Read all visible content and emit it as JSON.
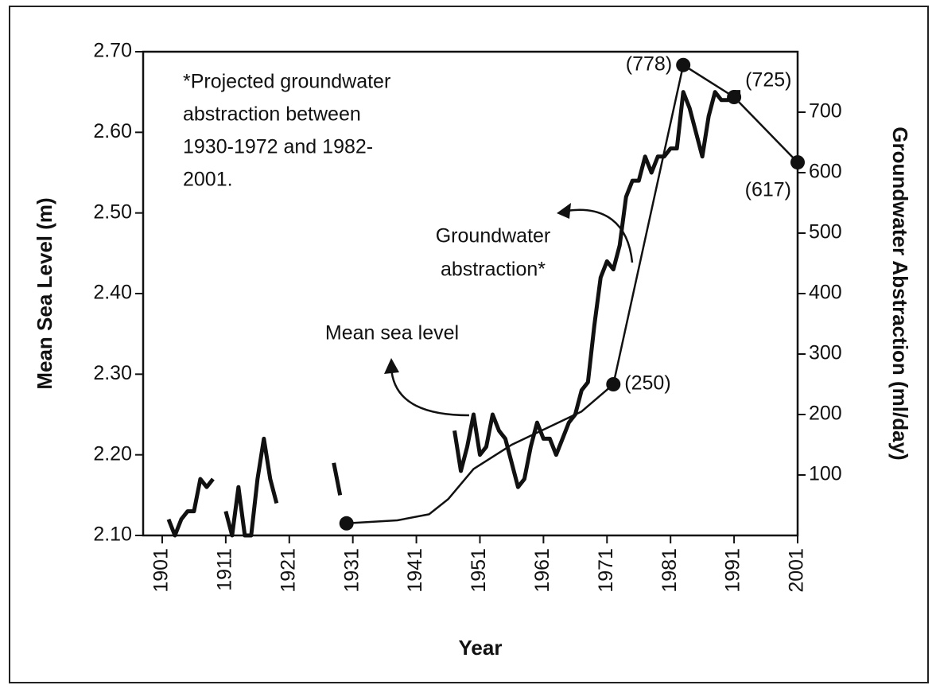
{
  "chart_data": {
    "type": "line",
    "xlabel": "Year",
    "ylabel": "Mean Sea Level (m)",
    "y2label": "Groundwater Abstraction (ml/day)",
    "xlim": [
      1898,
      2001
    ],
    "xticks": [
      1901,
      1911,
      1921,
      1931,
      1941,
      1951,
      1961,
      1971,
      1981,
      1991,
      2001
    ],
    "ylim": [
      2.1,
      2.7
    ],
    "yticks": [
      {
        "value": 2.1,
        "label": "2.10"
      },
      {
        "value": 2.2,
        "label": "2.20"
      },
      {
        "value": 2.3,
        "label": "2.30"
      },
      {
        "value": 2.4,
        "label": "2.40"
      },
      {
        "value": 2.5,
        "label": "2.50"
      },
      {
        "value": 2.6,
        "label": "2.60"
      },
      {
        "value": 2.7,
        "label": "2.70"
      }
    ],
    "y2lim": [
      0,
      800
    ],
    "y2ticks": [
      100,
      200,
      300,
      400,
      500,
      600,
      700
    ],
    "grid": false,
    "annotations": {
      "note": [
        "*Projected groundwater",
        "abstraction between",
        "1930-1972 and 1982-",
        "2001."
      ],
      "groundwater": [
        "Groundwater",
        "abstraction*"
      ],
      "sea_level": "Mean sea level"
    },
    "series": [
      {
        "name": "Mean sea level",
        "color": "#111111",
        "x": [
          1902,
          1903,
          1904,
          1905,
          1906,
          1907,
          1908,
          1909,
          1910,
          1911,
          1912,
          1913,
          1914,
          1915,
          1916,
          1917,
          1918,
          1919,
          1920,
          1921,
          1922,
          1923,
          1924,
          1925,
          1926,
          1927,
          1928,
          1929,
          1930,
          1931,
          1932,
          1933,
          1934,
          1935,
          1936,
          1937,
          1938,
          1939,
          1940,
          1941,
          1942,
          1943,
          1944,
          1945,
          1946,
          1947,
          1948,
          1949,
          1950,
          1951,
          1952,
          1953,
          1954,
          1955,
          1956,
          1957,
          1958,
          1959,
          1960,
          1961,
          1962,
          1963,
          1964,
          1965,
          1966,
          1967,
          1968,
          1969,
          1970,
          1971,
          1972,
          1973,
          1974,
          1975,
          1976,
          1977,
          1978,
          1979,
          1980,
          1981,
          1982,
          1983,
          1984,
          1985,
          1986,
          1987,
          1988,
          1989,
          1990,
          1991,
          1992
        ],
        "values": [
          2.12,
          2.1,
          2.12,
          2.13,
          2.13,
          2.17,
          2.16,
          2.17,
          null,
          2.13,
          2.1,
          2.16,
          2.1,
          2.1,
          2.17,
          2.22,
          2.17,
          2.14,
          null,
          null,
          null,
          null,
          null,
          null,
          null,
          null,
          2.19,
          2.15,
          null,
          null,
          null,
          null,
          null,
          null,
          null,
          null,
          null,
          null,
          null,
          null,
          null,
          null,
          null,
          null,
          null,
          2.23,
          2.18,
          2.21,
          2.25,
          2.2,
          2.21,
          2.25,
          2.23,
          2.22,
          2.19,
          2.16,
          2.17,
          2.21,
          2.24,
          2.22,
          2.22,
          2.2,
          2.22,
          2.24,
          2.25,
          2.28,
          2.29,
          2.36,
          2.42,
          2.44,
          2.43,
          2.46,
          2.52,
          2.54,
          2.54,
          2.57,
          2.55,
          2.57,
          2.57,
          2.58,
          2.58,
          2.65,
          2.63,
          2.6,
          2.57,
          2.62,
          2.65,
          2.64,
          2.64,
          2.65,
          2.65
        ]
      },
      {
        "name": "Groundwater abstraction*",
        "color": "#111111",
        "axis": "y2",
        "x": [
          1930,
          1938,
          1943,
          1946,
          1950,
          1956,
          1962,
          1967,
          1972,
          1983,
          1991,
          2001
        ],
        "values": [
          20,
          25,
          35,
          60,
          110,
          150,
          180,
          205,
          250,
          778,
          725,
          617
        ],
        "value_labels": [
          null,
          null,
          null,
          null,
          null,
          null,
          null,
          null,
          "(250)",
          "(778)",
          "(725)",
          "(617)"
        ]
      }
    ]
  }
}
